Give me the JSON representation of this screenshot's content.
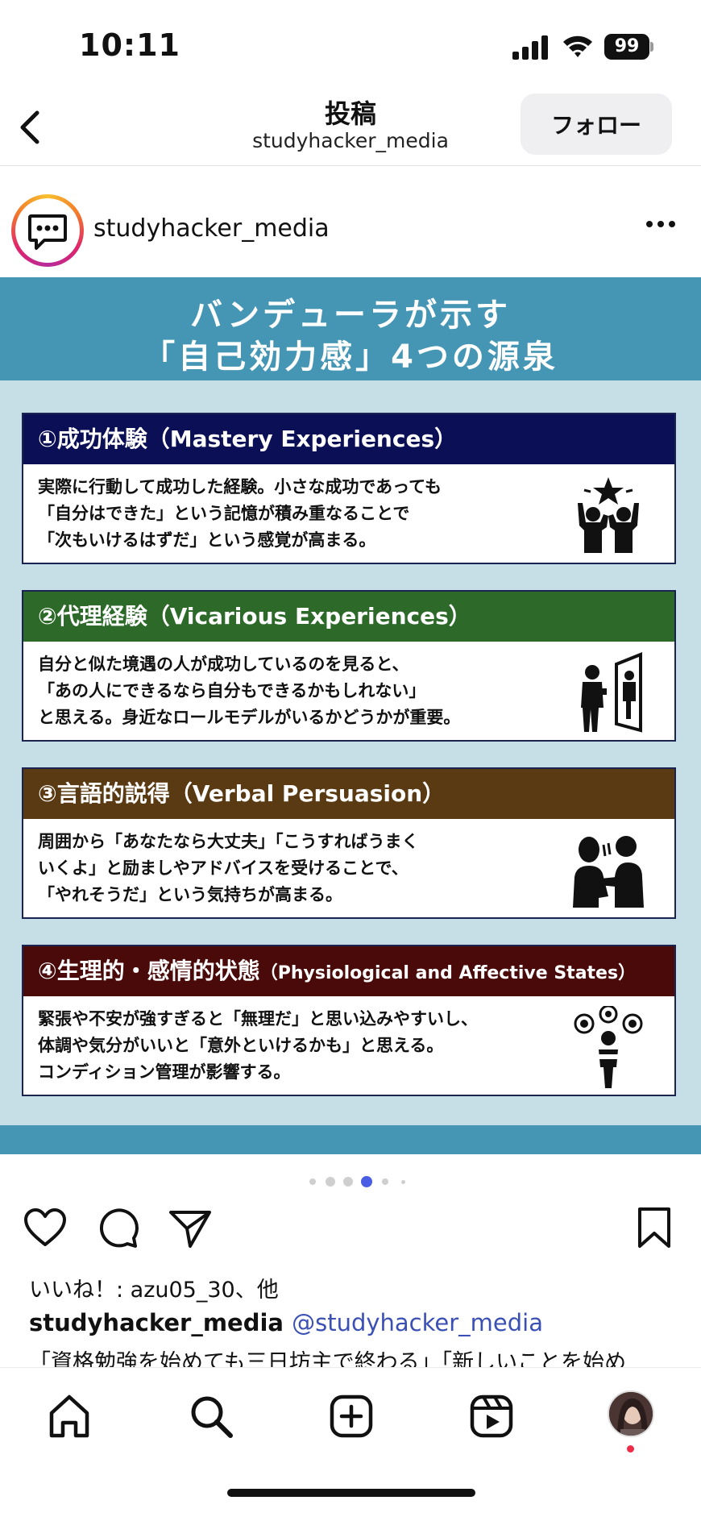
{
  "status_bar": {
    "time": "10:11",
    "battery": "99"
  },
  "header": {
    "title": "投稿",
    "subtitle": "studyhacker_media",
    "follow_label": "フォロー"
  },
  "post": {
    "author": "studyhacker_media",
    "image": {
      "title_line1": "バンデューラが示す",
      "title_line2": "「自己効力感」4つの源泉",
      "cards": [
        {
          "heading": "①成功体験（Mastery Experiences）",
          "color": "#0b0f55",
          "lines": [
            "実際に行動して成功した経験。小さな成功であっても",
            "「自分はできた」という記憶が積み重なることで",
            "「次もいけるはずだ」という感覚が高まる。"
          ],
          "icon": "celebrating-people-icon"
        },
        {
          "heading": "②代理経験（Vicarious Experiences）",
          "color": "#2d6a2a",
          "lines": [
            "自分と似た境遇の人が成功しているのを見ると、",
            "「あの人にできるなら自分もできるかもしれない」",
            "と思える。身近なロールモデルがいるかどうかが重要。"
          ],
          "icon": "mirror-person-icon"
        },
        {
          "heading": "③言語的説得（Verbal Persuasion）",
          "color": "#5a3a12",
          "lines": [
            "周囲から「あなたなら大丈夫」「こうすればうまく",
            "いくよ」と励ましやアドバイスを受けることで、",
            "「やれそうだ」という気持ちが高まる。"
          ],
          "icon": "encouraging-people-icon"
        },
        {
          "heading_main": "④生理的・感情的状態",
          "heading_sub": "（Physiological and Affective States）",
          "color": "#4a0a0a",
          "lines": [
            "緊張や不安が強すぎると「無理だ」と思い込みやすいし、",
            "体調や気分がいいと「意外といけるかも」と思える。",
            "コンディション管理が影響する。"
          ],
          "icon": "thinking-person-icon"
        }
      ]
    },
    "carousel": {
      "active_index": 3,
      "count": 6
    },
    "likes_text": "いいね！: azu05_30、他",
    "caption_user": "studyhacker_media",
    "caption_mention": "@studyhacker_media",
    "caption_text": "「資格勉強を始めても三日坊主で終わる」「新しいことを始め"
  },
  "colors": {
    "banner": "#4596b4",
    "image_bg": "#c6dfe6",
    "mention": "#3b50b5",
    "active_dot": "#4b5de4"
  }
}
